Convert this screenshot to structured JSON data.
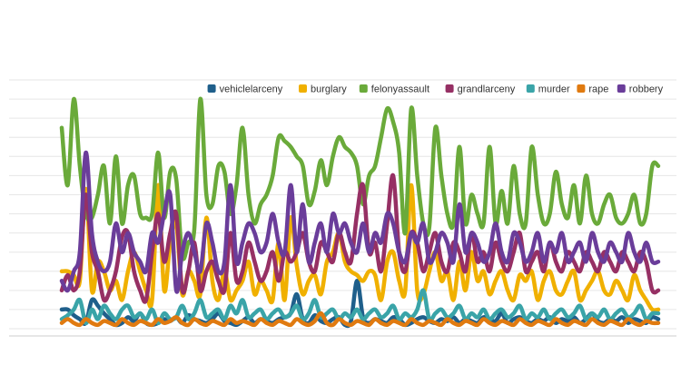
{
  "chart_data": {
    "type": "line",
    "title": "",
    "xlabel": "",
    "ylabel": "",
    "ylim": [
      0,
      13
    ],
    "grid": true,
    "legend_position": "top-right",
    "x": [
      1,
      2,
      3,
      4,
      5,
      6,
      7,
      8,
      9,
      10,
      11,
      12,
      13,
      14,
      15,
      16,
      17,
      18,
      19,
      20,
      21,
      22,
      23,
      24,
      25,
      26,
      27,
      28,
      29,
      30,
      31,
      32,
      33,
      34,
      35,
      36,
      37,
      38,
      39,
      40,
      41,
      42,
      43,
      44,
      45,
      46,
      47,
      48,
      49,
      50,
      51,
      52,
      53,
      54,
      55,
      56,
      57,
      58,
      59,
      60,
      61,
      62,
      63,
      64,
      65,
      66,
      67,
      68,
      69,
      70,
      71,
      72,
      73,
      74,
      75,
      76,
      77,
      78,
      79,
      80,
      81,
      82,
      83,
      84,
      85,
      86,
      87,
      88,
      89,
      90,
      91,
      92,
      93,
      94,
      95,
      96,
      97,
      98,
      99,
      100
    ],
    "series": [
      {
        "name": "vehiclelarceny",
        "color": "#1f5f8b",
        "values": [
          1,
          1,
          0.7,
          0.5,
          0.3,
          1.5,
          1.2,
          0.8,
          0.5,
          0.2,
          0.3,
          0.6,
          0.4,
          0.8,
          0.3,
          0.2,
          0.3,
          0.5,
          0.4,
          0.6,
          0.3,
          0.7,
          0.5,
          0.4,
          0.3,
          0.5,
          0.8,
          0.4,
          0.3,
          0.2,
          0.4,
          0.6,
          0.3,
          0.5,
          0.4,
          0.3,
          0.5,
          0.6,
          0.8,
          1.8,
          0.5,
          0.3,
          0.7,
          0.4,
          0.3,
          0.5,
          0.6,
          0.2,
          0.4,
          2.5,
          0.6,
          0.3,
          0.5,
          0.4,
          0.3,
          0.6,
          0.5,
          0.2,
          0.3,
          0.5,
          0.6,
          0.4,
          0.3,
          0.5,
          0.4,
          0.6,
          0.3,
          0.5,
          0.4,
          0.3,
          0.6,
          0.5,
          0.4,
          0.8,
          0.3,
          0.5,
          0.6,
          0.4,
          0.3,
          0.5,
          0.4,
          0.6,
          0.3,
          0.5,
          0.4,
          0.6,
          0.3,
          0.5,
          0.8,
          0.4,
          0.3,
          0.5,
          0.4,
          0.6,
          0.3,
          0.5,
          0.4,
          0.3,
          0.6,
          0.5
        ]
      },
      {
        "name": "burglary",
        "color": "#f0b000",
        "values": [
          3,
          3,
          2.8,
          2.5,
          7.3,
          2,
          3.5,
          3,
          2,
          2.5,
          1.5,
          3,
          4,
          3,
          2,
          1.5,
          7.5,
          2,
          4.5,
          5.5,
          1.8,
          3,
          2.5,
          1.8,
          5.8,
          2.5,
          1.5,
          3,
          1.5,
          2,
          2.5,
          3.5,
          1.8,
          2.5,
          2,
          1.5,
          4.5,
          1.5,
          5.8,
          3.3,
          1.8,
          2.5,
          2.8,
          1.8,
          3.5,
          4,
          5,
          3.5,
          3,
          2.8,
          2.5,
          3,
          2.8,
          1.5,
          3.5,
          4,
          2.5,
          2,
          7.5,
          2,
          1.8,
          3,
          4,
          2.5,
          3,
          1.5,
          3.5,
          2,
          4,
          2.5,
          3,
          1.8,
          2.5,
          3,
          2,
          1.5,
          2.8,
          2.5,
          3,
          1.5,
          2.5,
          3,
          2,
          1.8,
          2.5,
          3,
          1.5,
          2,
          2.5,
          3,
          2,
          1.8,
          2.5,
          2,
          1.5,
          2.8,
          2,
          1.5,
          1,
          1
        ]
      },
      {
        "name": "felonyassault",
        "color": "#6aaa3a",
        "values": [
          10.5,
          7.5,
          12,
          8.5,
          6,
          5.8,
          7,
          8.5,
          5.5,
          9,
          5.5,
          7.5,
          8,
          6,
          5.8,
          6,
          9.2,
          5.8,
          8.2,
          7.8,
          3.8,
          4.5,
          5.2,
          12,
          7,
          6.5,
          8.5,
          8.2,
          6,
          7.5,
          10.5,
          7,
          5.5,
          6.5,
          7,
          8,
          10,
          9.8,
          9.5,
          9,
          8.5,
          6.5,
          7.2,
          8.8,
          7.5,
          9,
          10,
          9.5,
          9.2,
          8.5,
          6.5,
          8,
          8.5,
          10,
          11.5,
          10.8,
          9.2,
          5,
          11.5,
          8,
          5.5,
          5.3,
          10.5,
          8,
          6,
          5.5,
          9.5,
          5.5,
          7,
          6,
          5.5,
          9.5,
          5.5,
          7.2,
          5.5,
          8.5,
          6,
          5.5,
          9.5,
          7,
          5.5,
          6,
          8.2,
          6.5,
          5.8,
          7.5,
          5.5,
          8,
          6,
          5.5,
          6.5,
          7,
          5.8,
          5.5,
          6,
          7,
          5.5,
          6,
          8.5,
          8.5
        ]
      },
      {
        "name": "grandlarceny",
        "color": "#963064",
        "values": [
          2,
          2.8,
          2,
          3,
          7,
          4,
          3,
          1.5,
          2,
          3,
          4.8,
          5,
          3,
          2,
          1.5,
          4,
          6,
          3.5,
          5,
          6,
          2,
          3,
          4.5,
          2,
          3,
          3.5,
          2.5,
          2,
          5,
          2.5,
          3,
          4.5,
          3.5,
          2.5,
          3,
          4,
          2.5,
          4,
          3.5,
          4,
          5,
          3.5,
          3,
          4.5,
          4,
          3.5,
          5,
          4,
          3.5,
          6,
          7.5,
          4,
          4.5,
          3,
          5.5,
          8,
          4,
          3,
          5,
          4.5,
          3,
          4,
          5,
          3.5,
          3,
          4.5,
          4,
          3,
          5,
          3.5,
          4,
          3,
          4.5,
          3.5,
          3,
          4,
          5,
          3,
          3.5,
          4,
          3,
          4.5,
          3.5,
          3,
          4,
          3.5,
          3,
          4,
          3.5,
          3,
          4,
          3.5,
          3,
          4,
          3.5,
          3,
          4,
          3.5,
          2,
          2
        ]
      },
      {
        "name": "murder",
        "color": "#3aa4a8",
        "values": [
          0.5,
          0.7,
          1,
          1.5,
          0.3,
          1,
          0.5,
          1.2,
          0.8,
          0.5,
          1,
          1.2,
          0.6,
          0.8,
          0.5,
          1,
          0.3,
          0.8,
          0.5,
          0.6,
          1.2,
          0.5,
          0.8,
          1.5,
          0.6,
          0.8,
          1,
          0.5,
          1.2,
          0.8,
          1.5,
          0.6,
          0.8,
          1,
          0.5,
          0.8,
          1,
          0.6,
          0.8,
          1.2,
          0.5,
          0.8,
          1.5,
          0.6,
          0.8,
          1,
          0.5,
          0.8,
          0.6,
          1,
          0.5,
          0.8,
          1,
          0.6,
          0.8,
          1.2,
          0.5,
          0.8,
          0.6,
          1,
          2,
          0.5,
          0.8,
          1,
          0.6,
          0.8,
          1.2,
          0.5,
          0.8,
          0.6,
          1,
          0.5,
          0.8,
          1,
          0.6,
          0.8,
          1.2,
          0.5,
          0.8,
          0.6,
          1,
          0.5,
          0.8,
          1,
          0.6,
          0.8,
          1.2,
          0.5,
          0.8,
          0.6,
          1,
          0.5,
          0.8,
          1,
          0.6,
          0.8,
          1.2,
          0.5,
          0.8,
          0.8
        ]
      },
      {
        "name": "rape",
        "color": "#e07a10",
        "values": [
          0.3,
          0.5,
          0.3,
          0.2,
          0.5,
          0.3,
          0.2,
          0.4,
          0.3,
          0.2,
          0.5,
          0.3,
          0.2,
          0.4,
          0.3,
          0.2,
          0.5,
          0.3,
          0.4,
          0.6,
          0.3,
          0.2,
          0.5,
          0.3,
          0.2,
          0.4,
          0.3,
          0.2,
          0.5,
          0.3,
          0.4,
          0.3,
          0.2,
          0.5,
          0.3,
          0.2,
          0.4,
          0.3,
          0.2,
          0.5,
          0.3,
          0.2,
          0.4,
          0.8,
          0.3,
          0.2,
          0.5,
          0.3,
          0.2,
          0.4,
          0.3,
          0.2,
          0.5,
          0.3,
          0.2,
          0.4,
          0.3,
          0.2,
          0.5,
          0.3,
          0.2,
          0.4,
          0.3,
          0.2,
          0.5,
          0.3,
          0.2,
          0.4,
          0.3,
          0.2,
          0.5,
          0.3,
          0.2,
          0.4,
          0.3,
          0.2,
          0.5,
          0.3,
          0.2,
          0.4,
          0.3,
          0.2,
          0.5,
          0.3,
          0.2,
          0.4,
          0.3,
          0.2,
          0.5,
          0.3,
          0.2,
          0.4,
          0.3,
          0.2,
          0.5,
          0.3,
          0.2,
          0.4,
          0.3,
          0.3
        ]
      },
      {
        "name": "robbery",
        "color": "#6a3d9a",
        "values": [
          2.5,
          2,
          3,
          4,
          9.2,
          5,
          3.5,
          3,
          3.5,
          5.5,
          4,
          5,
          4,
          3.5,
          3,
          5,
          4.5,
          6,
          7,
          2,
          4,
          5,
          4,
          3,
          5.5,
          4.5,
          3,
          3.5,
          7.5,
          3.5,
          4.5,
          5.5,
          5,
          4,
          4.5,
          6,
          4.5,
          4,
          7.5,
          4,
          6.5,
          3.5,
          4.5,
          5.5,
          4,
          6,
          5,
          5.5,
          4.5,
          4,
          5.5,
          4,
          5,
          4.5,
          6,
          5.5,
          4,
          3.5,
          5,
          4.5,
          5.5,
          3.5,
          4,
          5,
          4.5,
          3.5,
          6.5,
          4,
          5,
          4.5,
          3.5,
          4,
          5.5,
          4,
          3.5,
          5,
          4.5,
          3.5,
          4,
          5,
          3.5,
          4.5,
          4,
          5,
          3.5,
          4,
          4.5,
          3.5,
          5,
          4,
          3.5,
          4.5,
          4,
          3.5,
          5,
          4,
          3.5,
          4.5,
          3.5,
          3.5
        ]
      }
    ]
  }
}
